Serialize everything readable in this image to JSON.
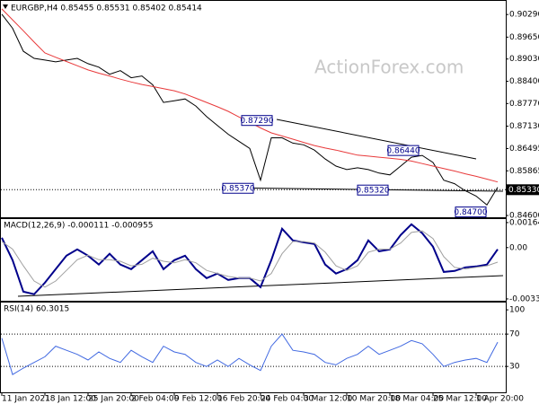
{
  "chart_data": [
    {
      "type": "line",
      "title": "EURGBP,H4 0.85455 0.85531 0.85402 0.85414",
      "watermark": "ActionForex.com",
      "series": [
        {
          "color": "#000000",
          "values": [
            0.903,
            0.899,
            0.8925,
            0.8905,
            0.89,
            0.8895,
            0.89,
            0.8905,
            0.889,
            0.888,
            0.886,
            0.887,
            0.885,
            0.8855,
            0.883,
            0.878,
            0.8785,
            0.879,
            0.877,
            0.874,
            0.8715,
            0.869,
            0.867,
            0.865,
            0.856,
            0.868,
            0.868,
            0.8665,
            0.866,
            0.8645,
            0.862,
            0.86,
            0.859,
            0.8595,
            0.859,
            0.858,
            0.8575,
            0.86,
            0.8625,
            0.863,
            0.861,
            0.856,
            0.855,
            0.853,
            0.8515,
            0.849,
            0.854
          ]
        },
        {
          "color": "#e8393a",
          "values": [
            0.9045,
            0.9014,
            0.8983,
            0.8951,
            0.892,
            0.8908,
            0.8896,
            0.8884,
            0.8872,
            0.8863,
            0.8855,
            0.8846,
            0.8838,
            0.8831,
            0.8825,
            0.8819,
            0.8813,
            0.8804,
            0.8792,
            0.878,
            0.8768,
            0.8755,
            0.8739,
            0.8724,
            0.8708,
            0.8694,
            0.8685,
            0.8676,
            0.8667,
            0.8658,
            0.8651,
            0.8645,
            0.8638,
            0.8631,
            0.8628,
            0.8625,
            0.8622,
            0.8619,
            0.8614,
            0.8607,
            0.86,
            0.8593,
            0.8586,
            0.8578,
            0.8571,
            0.8563,
            0.8555
          ]
        }
      ],
      "ylim": [
        0.8455,
        0.9065
      ],
      "yticks": [
        {
          "value": 0.9029,
          "label": "0.90290"
        },
        {
          "value": 0.8965,
          "label": "0.89650"
        },
        {
          "value": 0.8903,
          "label": "0.89030"
        },
        {
          "value": 0.884,
          "label": "0.88400"
        },
        {
          "value": 0.8777,
          "label": "0.87770"
        },
        {
          "value": 0.8713,
          "label": "0.87130"
        },
        0.86495,
        0.85865,
        {
          "value": 0.846,
          "label": "0.84600"
        }
      ],
      "price_marker": {
        "value": 0.8533,
        "label": "0.85330"
      },
      "annotations": [
        {
          "label": "0.87290",
          "value": 0.8729
        },
        {
          "label": "0.86440",
          "value": 0.8644
        },
        {
          "label": "0.85370",
          "value": 0.8537
        },
        {
          "label": "0.85320",
          "value": 0.8532
        },
        {
          "label": "0.84700",
          "value": 0.847
        }
      ]
    },
    {
      "type": "line",
      "title": "MACD(12,26,9) -0.000111 -0.000955",
      "series": [
        {
          "color": "#00008b",
          "values": [
            0.00065,
            -0.00083,
            -0.0029,
            -0.00307,
            -0.00231,
            -0.00142,
            -0.00053,
            -0.00012,
            -0.00053,
            -0.00112,
            -0.00041,
            -0.00112,
            -0.00142,
            -0.00083,
            -0.00024,
            -0.00142,
            -0.00083,
            -0.00053,
            -0.00142,
            -0.00201,
            -0.00171,
            -0.00213,
            -0.00201,
            -0.00201,
            -0.0026,
            -0.00083,
            0.00124,
            0.00047,
            0.00035,
            0.00024,
            -0.00112,
            -0.00171,
            -0.00142,
            -0.00083,
            0.00047,
            -0.00024,
            -0.00012,
            0.00083,
            0.00154,
            0.00095,
            6e-05,
            -0.0016,
            -0.00154,
            -0.0013,
            -0.00124,
            -0.00112,
            -0.00011
          ]
        },
        {
          "color": "#a0a0a0",
          "values": [
            0.0004,
            -0.0001,
            -0.0012,
            -0.0022,
            -0.0026,
            -0.0022,
            -0.0015,
            -0.0008,
            -0.0005,
            -0.0008,
            -0.0008,
            -0.0009,
            -0.0012,
            -0.0011,
            -0.0007,
            -0.0009,
            -0.001,
            -0.0008,
            -0.001,
            -0.0015,
            -0.0017,
            -0.0019,
            -0.002,
            -0.002,
            -0.0022,
            -0.0017,
            -0.0004,
            0.0004,
            0.0004,
            0.0003,
            -0.0003,
            -0.0012,
            -0.0015,
            -0.0012,
            -0.0003,
            -0.0001,
            -0.0001,
            0.0003,
            0.001,
            0.0011,
            0.0006,
            -0.0006,
            -0.0013,
            -0.0014,
            -0.0013,
            -0.0012,
            -0.00096
          ]
        }
      ],
      "ylim": [
        -0.0035,
        0.00188
      ],
      "yticks": [
        0.001648,
        {
          "value": 0,
          "label": "0.00"
        },
        -0.003379
      ]
    },
    {
      "type": "line",
      "title": "RSI(14) 60.3015",
      "series": [
        {
          "color": "#4169e1",
          "values": [
            65,
            20,
            28,
            35,
            42,
            55,
            50,
            45,
            38,
            48,
            40,
            35,
            50,
            42,
            35,
            55,
            48,
            45,
            35,
            30,
            38,
            30,
            40,
            32,
            25,
            55,
            70,
            50,
            48,
            45,
            35,
            32,
            40,
            45,
            55,
            45,
            50,
            55,
            62,
            58,
            45,
            30,
            35,
            38,
            40,
            35,
            60
          ]
        }
      ],
      "ylim": [
        -2,
        109
      ],
      "yticks": [
        100,
        70,
        30
      ],
      "levels": [
        70,
        30
      ],
      "categories": [
        "11 Jan 2021",
        null,
        null,
        null,
        "18 Jan 12:00",
        null,
        null,
        null,
        "25 Jan 20:00",
        null,
        null,
        null,
        "2 Feb 04:00",
        null,
        null,
        null,
        "9 Feb 12:00",
        null,
        null,
        null,
        "16 Feb 20:00",
        null,
        null,
        null,
        "24 Feb 04:00",
        null,
        null,
        null,
        "3 Mar 12:00",
        null,
        null,
        null,
        "10 Mar 20:00",
        null,
        null,
        null,
        "18 Mar 04:00",
        null,
        null,
        null,
        "25 Mar 12:00",
        null,
        null,
        null,
        "1 Apr 20:00",
        null,
        null
      ]
    }
  ]
}
